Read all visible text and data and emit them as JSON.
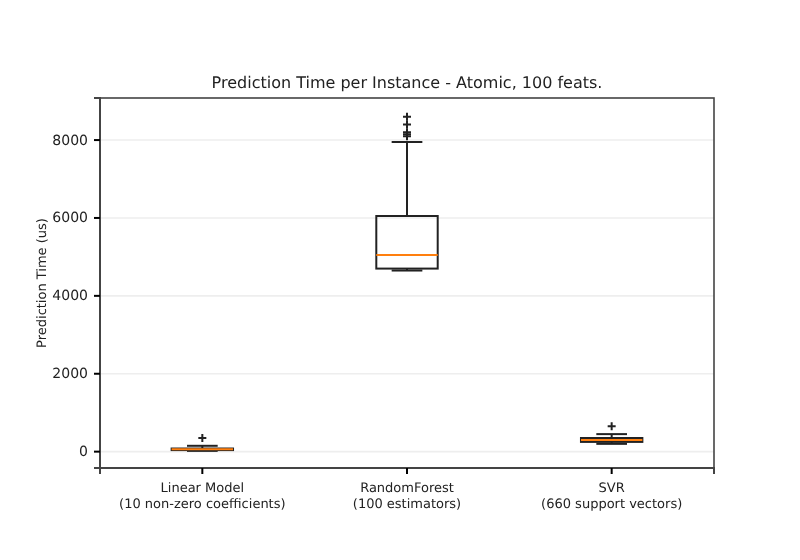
{
  "chart_data": {
    "type": "box",
    "title": "Prediction Time per Instance - Atomic, 100 feats.",
    "ylabel": "Prediction Time (us)",
    "categories": [
      "Linear Model\n(10 non-zero coefficients)",
      "RandomForest\n(100 estimators)",
      "SVR\n(660 support vectors)"
    ],
    "boxes": [
      {
        "low": 20,
        "q1": 40,
        "median": 60,
        "q3": 80,
        "high": 150,
        "outliers": [
          350
        ]
      },
      {
        "low": 4650,
        "q1": 4700,
        "median": 5050,
        "q3": 6050,
        "high": 7950,
        "outliers": [
          8100,
          8150,
          8200,
          8400,
          8600
        ]
      },
      {
        "low": 200,
        "q1": 250,
        "median": 300,
        "q3": 350,
        "high": 450,
        "outliers": [
          650
        ]
      }
    ],
    "color": "#222222",
    "ylim": [
      -420,
      9080
    ],
    "yticks": [
      0,
      2000,
      4000,
      6000,
      8000
    ],
    "grid": "y",
    "marker": "cross"
  }
}
